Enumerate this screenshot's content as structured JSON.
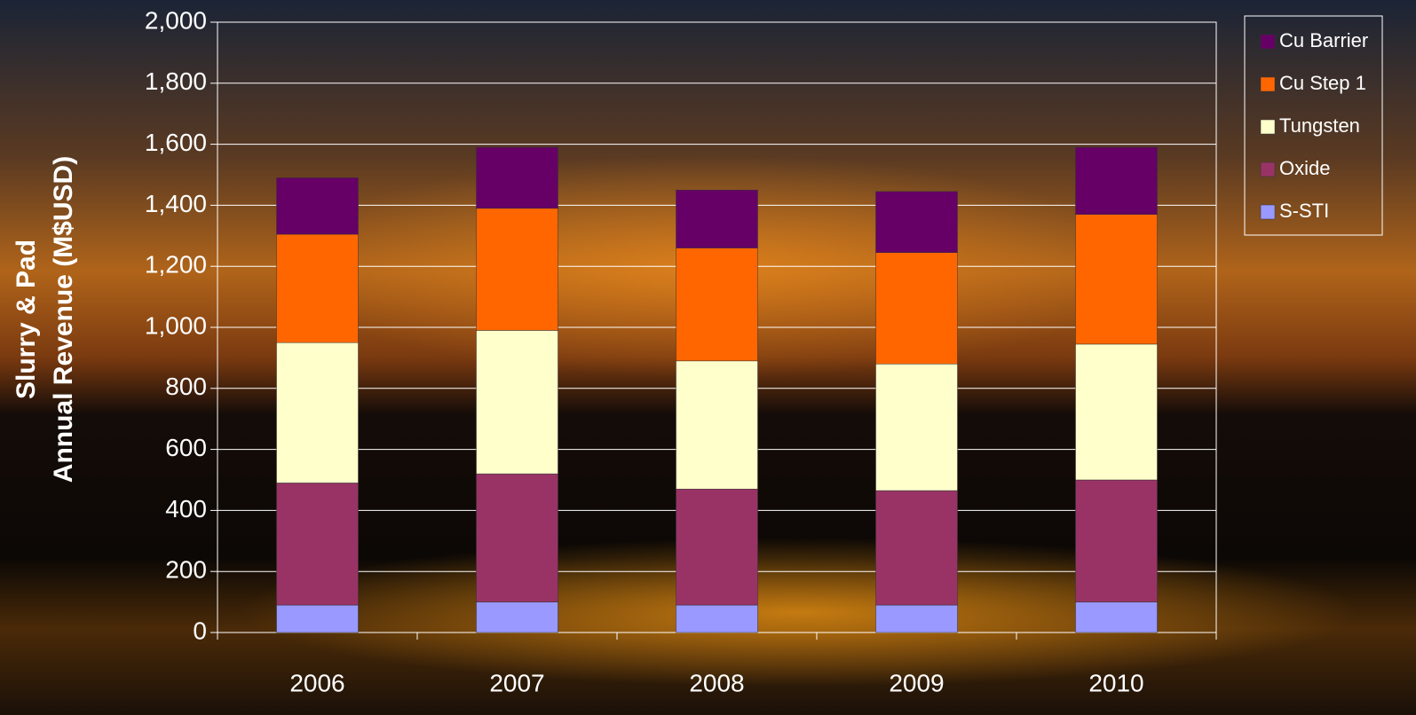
{
  "chart_data": {
    "type": "stacked_bar",
    "y_label": [
      "Slurry & Pad",
      "Annual Revenue (M$USD)"
    ],
    "categories": [
      "2006",
      "2007",
      "2008",
      "2009",
      "2010"
    ],
    "series": [
      {
        "name": "S-STI",
        "color": "#9999ff",
        "values": [
          90,
          100,
          90,
          90,
          100
        ]
      },
      {
        "name": "Oxide",
        "color": "#993366",
        "values": [
          400,
          420,
          380,
          375,
          400
        ]
      },
      {
        "name": "Tungsten",
        "color": "#ffffcc",
        "values": [
          460,
          470,
          420,
          415,
          445
        ]
      },
      {
        "name": "Cu Step 1",
        "color": "#ff6600",
        "values": [
          355,
          400,
          370,
          365,
          425
        ]
      },
      {
        "name": "Cu Barrier",
        "color": "#660066",
        "values": [
          185,
          200,
          190,
          200,
          220
        ]
      }
    ],
    "ylim": [
      0,
      2000
    ],
    "yticks": [
      0,
      200,
      400,
      600,
      800,
      {
        "value": 1000,
        "label": "1,000"
      },
      {
        "value": 1200,
        "label": "1,200"
      },
      {
        "value": 1400,
        "label": "1,400"
      },
      {
        "value": 1600,
        "label": "1,600"
      },
      {
        "value": 1800,
        "label": "1,800"
      },
      {
        "value": 2000,
        "label": "2,000"
      }
    ],
    "grid": true,
    "legend": "top-right"
  }
}
